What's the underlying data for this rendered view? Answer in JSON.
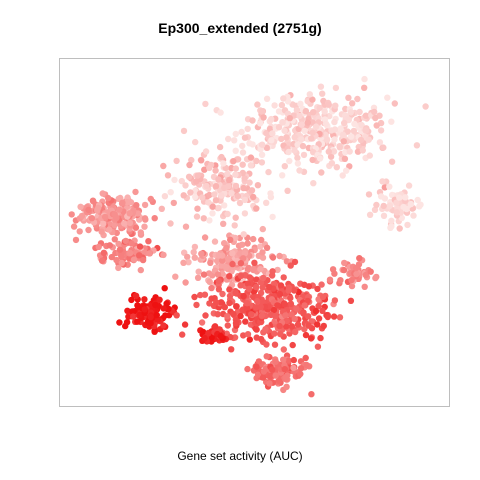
{
  "chart_data": {
    "type": "scatter",
    "title": "Ep300_extended (2751g)",
    "xlabel": "Gene set activity (AUC)",
    "ylabel": "",
    "axes_visible": false,
    "grid": false,
    "color_scale": {
      "low": "#fde4e2",
      "high": "#ee1111",
      "variable": "AUC"
    },
    "xlim": [
      -50,
      50
    ],
    "ylim": [
      -50,
      50
    ],
    "clusters": [
      {
        "name": "top-right-large",
        "center": [
          15,
          29
        ],
        "spread": [
          16,
          9
        ],
        "n": 380,
        "auc": 0.08
      },
      {
        "name": "top-middle-arc",
        "center": [
          -9,
          13
        ],
        "spread": [
          10,
          9
        ],
        "n": 170,
        "auc": 0.14
      },
      {
        "name": "right-small",
        "center": [
          37,
          8
        ],
        "spread": [
          5,
          5
        ],
        "n": 70,
        "auc": 0.06
      },
      {
        "name": "left-band",
        "center": [
          -36,
          5
        ],
        "spread": [
          8,
          5
        ],
        "n": 200,
        "auc": 0.38
      },
      {
        "name": "left-lower-strip",
        "center": [
          -32,
          -6
        ],
        "spread": [
          6,
          3
        ],
        "n": 90,
        "auc": 0.46
      },
      {
        "name": "center-bridge",
        "center": [
          -6,
          -8
        ],
        "spread": [
          9,
          6
        ],
        "n": 170,
        "auc": 0.32
      },
      {
        "name": "bottom-mid-large",
        "center": [
          4,
          -21
        ],
        "spread": [
          14,
          8
        ],
        "n": 380,
        "auc": 0.66
      },
      {
        "name": "left-red-blob",
        "center": [
          -27,
          -23
        ],
        "spread": [
          5,
          4
        ],
        "n": 120,
        "auc": 0.96
      },
      {
        "name": "small-red-spot",
        "center": [
          -10,
          -30
        ],
        "spread": [
          3,
          2
        ],
        "n": 45,
        "auc": 0.92
      },
      {
        "name": "bottom-tail",
        "center": [
          6,
          -40
        ],
        "spread": [
          6,
          3.5
        ],
        "n": 110,
        "auc": 0.55
      },
      {
        "name": "right-tail",
        "center": [
          26,
          -12
        ],
        "spread": [
          5,
          3
        ],
        "n": 50,
        "auc": 0.44
      }
    ]
  }
}
